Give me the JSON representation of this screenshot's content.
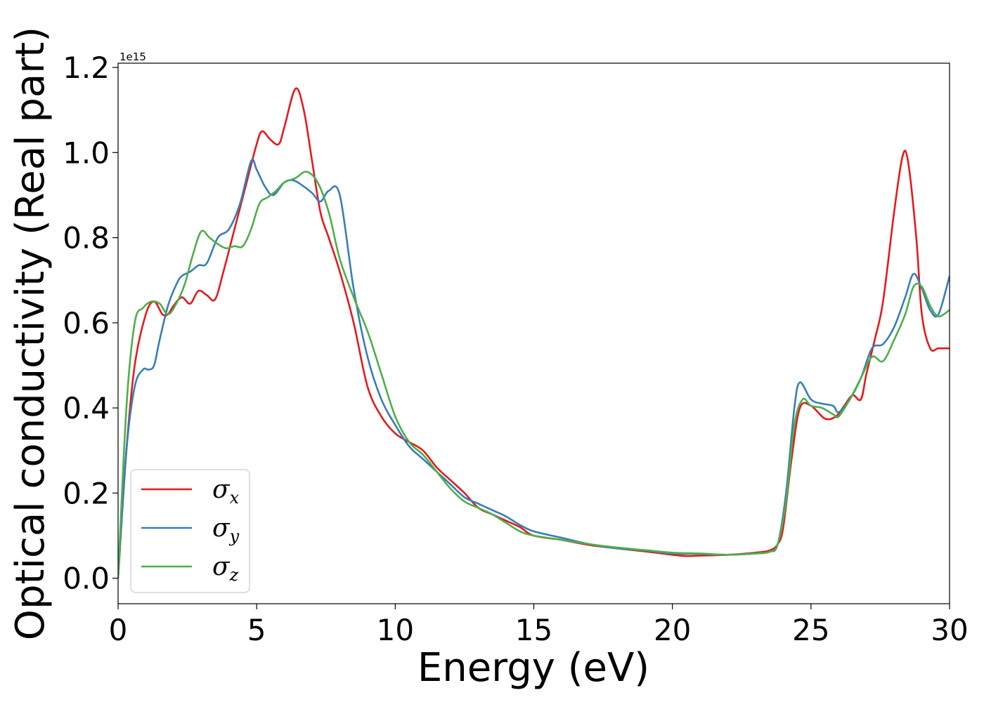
{
  "chart_data": {
    "type": "line",
    "xlabel": "Energy (eV)",
    "ylabel": "Optical conductivity (Real part)",
    "y_offset_label": "1e15",
    "xlim": [
      0,
      30
    ],
    "ylim": [
      -0.06,
      1.21
    ],
    "y_scale_factor": 1000000000000000.0,
    "xticks": [
      0,
      5,
      10,
      15,
      20,
      25,
      30
    ],
    "yticks": [
      0.0,
      0.2,
      0.4,
      0.6,
      0.8,
      1.0,
      1.2
    ],
    "xtick_labels": [
      "0",
      "5",
      "10",
      "15",
      "20",
      "25",
      "30"
    ],
    "ytick_labels": [
      "0.0",
      "0.2",
      "0.4",
      "0.6",
      "0.8",
      "1.0",
      "1.2"
    ],
    "grid": false,
    "legend_placement": "lower-left",
    "series": [
      {
        "name": "σx",
        "legend_symbol": "σ",
        "legend_sub": "x",
        "color": "#e41a1c",
        "x": [
          0,
          0.3,
          0.6,
          1.0,
          1.3,
          1.6,
          1.8,
          2.0,
          2.3,
          2.6,
          2.9,
          3.2,
          3.5,
          3.8,
          4.2,
          4.6,
          5.0,
          5.2,
          5.5,
          5.8,
          6.0,
          6.4,
          6.7,
          7.0,
          7.3,
          7.6,
          8.0,
          8.5,
          9.0,
          9.5,
          10.0,
          10.5,
          11.0,
          11.5,
          12.0,
          12.5,
          13.0,
          13.5,
          14.0,
          14.5,
          15.0,
          16.0,
          17.0,
          18.0,
          19.0,
          20.0,
          20.5,
          21.0,
          22.0,
          23.0,
          23.5,
          23.8,
          24.0,
          24.3,
          24.6,
          25.0,
          25.5,
          25.9,
          26.2,
          26.5,
          26.8,
          27.0,
          27.3,
          27.6,
          28.0,
          28.3,
          28.5,
          28.8,
          29.0,
          29.3,
          29.6,
          30.0
        ],
        "y": [
          0.0,
          0.3,
          0.5,
          0.62,
          0.65,
          0.62,
          0.62,
          0.64,
          0.66,
          0.645,
          0.675,
          0.665,
          0.655,
          0.72,
          0.82,
          0.92,
          1.02,
          1.05,
          1.03,
          1.02,
          1.06,
          1.15,
          1.1,
          0.98,
          0.86,
          0.8,
          0.72,
          0.6,
          0.45,
          0.38,
          0.34,
          0.32,
          0.3,
          0.26,
          0.23,
          0.2,
          0.165,
          0.15,
          0.135,
          0.12,
          0.1,
          0.09,
          0.078,
          0.07,
          0.063,
          0.055,
          0.052,
          0.053,
          0.055,
          0.06,
          0.065,
          0.08,
          0.12,
          0.28,
          0.4,
          0.405,
          0.375,
          0.38,
          0.405,
          0.43,
          0.42,
          0.48,
          0.56,
          0.65,
          0.86,
          0.99,
          0.98,
          0.8,
          0.62,
          0.54,
          0.54,
          0.54
        ]
      },
      {
        "name": "σy",
        "legend_symbol": "σ",
        "legend_sub": "y",
        "color": "#377eb8",
        "x": [
          0,
          0.3,
          0.6,
          0.9,
          1.1,
          1.3,
          1.5,
          1.8,
          2.1,
          2.3,
          2.6,
          2.9,
          3.2,
          3.6,
          4.0,
          4.4,
          4.8,
          5.0,
          5.3,
          5.6,
          6.0,
          6.3,
          6.6,
          7.0,
          7.3,
          7.6,
          8.0,
          8.5,
          9.0,
          9.5,
          10.0,
          10.5,
          11.0,
          11.5,
          12.0,
          12.5,
          13.0,
          13.5,
          14.0,
          14.5,
          15.0,
          16.0,
          17.0,
          18.0,
          19.0,
          20.0,
          21.0,
          22.0,
          23.0,
          23.5,
          23.8,
          24.1,
          24.4,
          24.6,
          25.0,
          25.4,
          25.8,
          26.0,
          26.4,
          26.8,
          27.2,
          27.6,
          28.0,
          28.4,
          28.7,
          29.0,
          29.3,
          29.6,
          30.0
        ],
        "y": [
          0.0,
          0.3,
          0.45,
          0.49,
          0.49,
          0.5,
          0.56,
          0.64,
          0.69,
          0.71,
          0.72,
          0.735,
          0.74,
          0.8,
          0.82,
          0.88,
          0.98,
          0.96,
          0.92,
          0.9,
          0.93,
          0.935,
          0.925,
          0.905,
          0.885,
          0.91,
          0.9,
          0.68,
          0.52,
          0.42,
          0.36,
          0.31,
          0.28,
          0.25,
          0.22,
          0.19,
          0.175,
          0.16,
          0.145,
          0.125,
          0.11,
          0.095,
          0.08,
          0.07,
          0.065,
          0.058,
          0.057,
          0.055,
          0.058,
          0.062,
          0.08,
          0.2,
          0.4,
          0.46,
          0.42,
          0.41,
          0.405,
          0.39,
          0.42,
          0.47,
          0.54,
          0.55,
          0.59,
          0.66,
          0.715,
          0.68,
          0.63,
          0.62,
          0.71
        ]
      },
      {
        "name": "σz",
        "legend_symbol": "σ",
        "legend_sub": "z",
        "color": "#4daf4a",
        "x": [
          0,
          0.3,
          0.6,
          0.9,
          1.2,
          1.5,
          1.8,
          2.1,
          2.4,
          2.7,
          3.0,
          3.3,
          3.6,
          3.9,
          4.2,
          4.5,
          4.8,
          5.1,
          5.4,
          5.7,
          6.0,
          6.4,
          6.8,
          7.2,
          7.6,
          8.0,
          8.5,
          9.0,
          9.5,
          10.0,
          10.5,
          11.0,
          11.5,
          12.0,
          12.5,
          13.0,
          13.5,
          14.0,
          14.5,
          15.0,
          16.0,
          17.0,
          18.0,
          19.0,
          20.0,
          21.0,
          22.0,
          23.0,
          23.5,
          23.8,
          24.1,
          24.4,
          24.7,
          25.0,
          25.4,
          25.8,
          26.0,
          26.4,
          26.8,
          27.2,
          27.6,
          28.0,
          28.4,
          28.7,
          29.0,
          29.3,
          29.6,
          30.0
        ],
        "y": [
          0.0,
          0.4,
          0.6,
          0.635,
          0.65,
          0.645,
          0.62,
          0.645,
          0.69,
          0.76,
          0.815,
          0.8,
          0.785,
          0.775,
          0.78,
          0.78,
          0.82,
          0.88,
          0.895,
          0.91,
          0.93,
          0.94,
          0.955,
          0.93,
          0.86,
          0.75,
          0.66,
          0.58,
          0.48,
          0.38,
          0.32,
          0.29,
          0.25,
          0.21,
          0.18,
          0.165,
          0.15,
          0.13,
          0.11,
          0.1,
          0.09,
          0.08,
          0.072,
          0.066,
          0.06,
          0.058,
          0.055,
          0.058,
          0.062,
          0.08,
          0.18,
          0.36,
          0.42,
          0.405,
          0.4,
          0.385,
          0.38,
          0.42,
          0.47,
          0.52,
          0.51,
          0.56,
          0.62,
          0.685,
          0.685,
          0.64,
          0.615,
          0.63
        ]
      }
    ]
  }
}
